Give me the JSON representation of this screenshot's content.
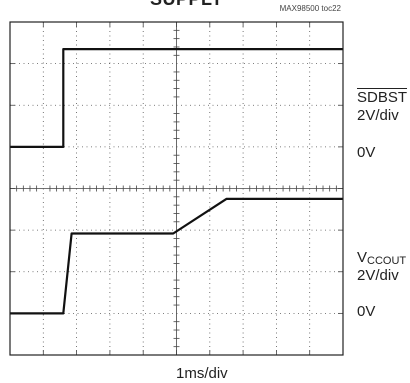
{
  "title": "SUPPLY",
  "figure_id": "MAX98500 toc22",
  "chart_data": {
    "type": "line",
    "xlabel": "1ms/div",
    "x_divisions": 10,
    "y_divisions": 8,
    "grid": true,
    "channels": [
      {
        "name": "SDBST",
        "name_overline": true,
        "scale": "2V/div",
        "zero_label": "0V",
        "zero_div": 5.0,
        "points": [
          [
            0,
            5.0
          ],
          [
            1.6,
            5.0
          ],
          [
            1.6,
            7.35
          ],
          [
            10,
            7.35
          ]
        ]
      },
      {
        "name_main": "V",
        "name_sub": "CCOUT",
        "scale": "2V/div",
        "zero_label": "0V",
        "zero_div": 1.0,
        "points": [
          [
            0,
            1.0
          ],
          [
            1.6,
            1.0
          ],
          [
            1.85,
            2.92
          ],
          [
            4.9,
            2.92
          ],
          [
            6.5,
            3.75
          ],
          [
            10,
            3.75
          ]
        ]
      }
    ]
  }
}
